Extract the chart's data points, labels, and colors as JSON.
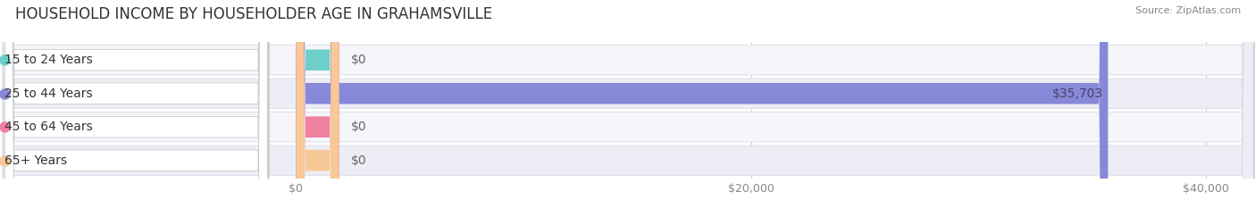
{
  "title": "HOUSEHOLD INCOME BY HOUSEHOLDER AGE IN GRAHAMSVILLE",
  "source": "Source: ZipAtlas.com",
  "categories": [
    "15 to 24 Years",
    "25 to 44 Years",
    "45 to 64 Years",
    "65+ Years"
  ],
  "values": [
    0,
    35703,
    0,
    0
  ],
  "bar_colors": [
    "#6ecfca",
    "#8888d8",
    "#f080a0",
    "#f8c898"
  ],
  "xlim_max": 42000,
  "xticks": [
    0,
    20000,
    40000
  ],
  "xtick_labels": [
    "$0",
    "$20,000",
    "$40,000"
  ],
  "value_labels": [
    "$0",
    "$35,703",
    "$0",
    "$0"
  ],
  "title_fontsize": 12,
  "tick_fontsize": 9,
  "label_fontsize": 10,
  "background_color": "#ffffff",
  "row_bg_colors": [
    "#f5f5fa",
    "#ededf5"
  ],
  "row_border_color": "#dedee8",
  "pill_label_bg": "#ffffff",
  "pill_label_border": "#cccccc"
}
